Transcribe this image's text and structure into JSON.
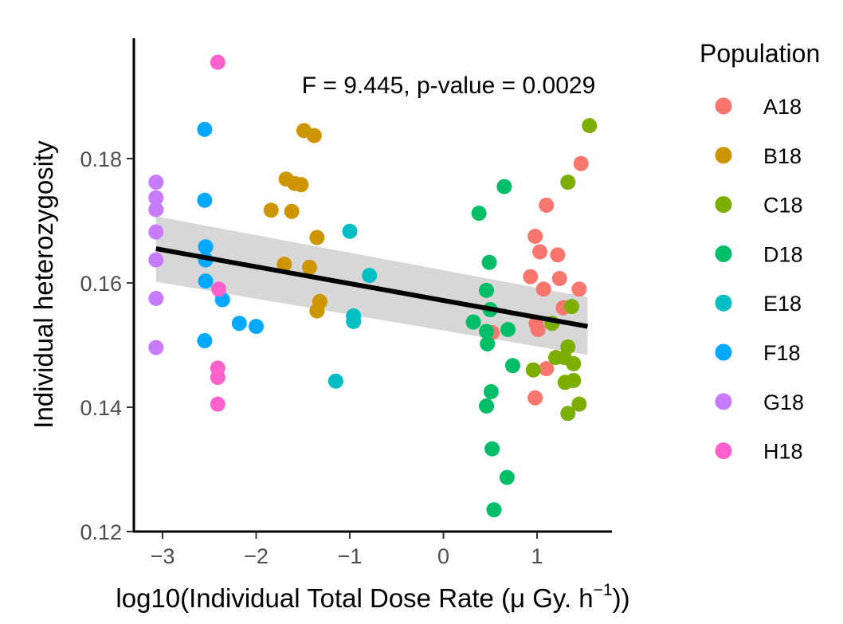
{
  "chart_data": {
    "type": "scatter",
    "xlabel_main": "log10(Individual Total Dose Rate (μ Gy. h",
    "xlabel_sup": "−1",
    "xlabel_end": "))",
    "ylabel": "Individual heterozygosity",
    "annotation": "F = 9.445, p-value = 0.0029",
    "xlim": [
      -3.3,
      1.8
    ],
    "ylim": [
      0.12,
      0.198
    ],
    "x_ticks": [
      -3,
      -2,
      -1,
      0,
      1
    ],
    "x_tick_labels": [
      "−3",
      "−2",
      "−1",
      "0",
      "1"
    ],
    "y_ticks": [
      0.12,
      0.14,
      0.16,
      0.18
    ],
    "y_tick_labels": [
      "0.12",
      "0.14",
      "0.16",
      "0.18"
    ],
    "legend_title": "Population",
    "regression": {
      "x_start": -3.07,
      "y_start": 0.1655,
      "x_end": 1.54,
      "y_end": 0.153,
      "band_upper_start": 0.1707,
      "band_lower_start": 0.1602,
      "band_upper_end": 0.1577,
      "band_lower_end": 0.1484
    },
    "series": [
      {
        "name": "A18",
        "color": "#F8766D",
        "points": [
          [
            1.47,
            0.1792
          ],
          [
            1.1,
            0.1725
          ],
          [
            0.98,
            0.1675
          ],
          [
            1.03,
            0.165
          ],
          [
            1.22,
            0.1645
          ],
          [
            0.93,
            0.161
          ],
          [
            1.24,
            0.1607
          ],
          [
            1.45,
            0.159
          ],
          [
            1.07,
            0.159
          ],
          [
            1.28,
            0.156
          ],
          [
            0.99,
            0.1535
          ],
          [
            1.01,
            0.1525
          ],
          [
            1.1,
            0.1462
          ],
          [
            0.98,
            0.1415
          ],
          [
            0.52,
            0.152
          ]
        ]
      },
      {
        "name": "B18",
        "color": "#CD9600",
        "points": [
          [
            -1.49,
            0.1845
          ],
          [
            -1.38,
            0.1837
          ],
          [
            -1.68,
            0.1767
          ],
          [
            -1.59,
            0.176
          ],
          [
            -1.52,
            0.1758
          ],
          [
            -1.84,
            0.1717
          ],
          [
            -1.62,
            0.1715
          ],
          [
            -1.35,
            0.1673
          ],
          [
            -1.7,
            0.163
          ],
          [
            -1.43,
            0.1625
          ],
          [
            -1.32,
            0.157
          ],
          [
            -1.35,
            0.1555
          ]
        ]
      },
      {
        "name": "C18",
        "color": "#7CAE00",
        "points": [
          [
            1.56,
            0.1853
          ],
          [
            1.33,
            0.1762
          ],
          [
            1.37,
            0.1562
          ],
          [
            1.16,
            0.1535
          ],
          [
            1.33,
            0.1497
          ],
          [
            1.2,
            0.148
          ],
          [
            1.29,
            0.148
          ],
          [
            1.39,
            0.147
          ],
          [
            0.96,
            0.146
          ],
          [
            1.3,
            0.144
          ],
          [
            1.39,
            0.1443
          ],
          [
            1.45,
            0.1405
          ],
          [
            1.33,
            0.139
          ]
        ]
      },
      {
        "name": "D18",
        "color": "#00BE67",
        "points": [
          [
            0.65,
            0.1755
          ],
          [
            0.38,
            0.1712
          ],
          [
            0.49,
            0.1633
          ],
          [
            0.46,
            0.1588
          ],
          [
            0.5,
            0.1557
          ],
          [
            0.32,
            0.1537
          ],
          [
            0.69,
            0.1525
          ],
          [
            0.46,
            0.1522
          ],
          [
            0.47,
            0.1502
          ],
          [
            0.74,
            0.1467
          ],
          [
            0.51,
            0.1425
          ],
          [
            0.46,
            0.1402
          ],
          [
            0.52,
            0.1333
          ],
          [
            0.68,
            0.1287
          ],
          [
            0.54,
            0.1235
          ]
        ]
      },
      {
        "name": "E18",
        "color": "#00BFC4",
        "points": [
          [
            -1.0,
            0.1683
          ],
          [
            -0.79,
            0.1612
          ],
          [
            -0.96,
            0.1547
          ],
          [
            -0.96,
            0.1538
          ],
          [
            -1.15,
            0.1442
          ]
        ]
      },
      {
        "name": "F18",
        "color": "#00A9FF",
        "points": [
          [
            -2.55,
            0.1847
          ],
          [
            -2.55,
            0.1733
          ],
          [
            -2.54,
            0.1658
          ],
          [
            -2.54,
            0.1637
          ],
          [
            -2.54,
            0.1603
          ],
          [
            -2.36,
            0.1573
          ],
          [
            -2.18,
            0.1535
          ],
          [
            -2.0,
            0.153
          ],
          [
            -2.55,
            0.1507
          ]
        ]
      },
      {
        "name": "G18",
        "color": "#C77CFF",
        "points": [
          [
            -3.07,
            0.1762
          ],
          [
            -3.07,
            0.1737
          ],
          [
            -3.07,
            0.1718
          ],
          [
            -3.07,
            0.1682
          ],
          [
            -3.07,
            0.1637
          ],
          [
            -3.07,
            0.1575
          ],
          [
            -3.07,
            0.1496
          ]
        ]
      },
      {
        "name": "H18",
        "color": "#FF61CC",
        "points": [
          [
            -2.41,
            0.1955
          ],
          [
            -2.4,
            0.159
          ],
          [
            -2.41,
            0.1463
          ],
          [
            -2.41,
            0.1448
          ],
          [
            -2.41,
            0.1405
          ]
        ]
      }
    ]
  }
}
